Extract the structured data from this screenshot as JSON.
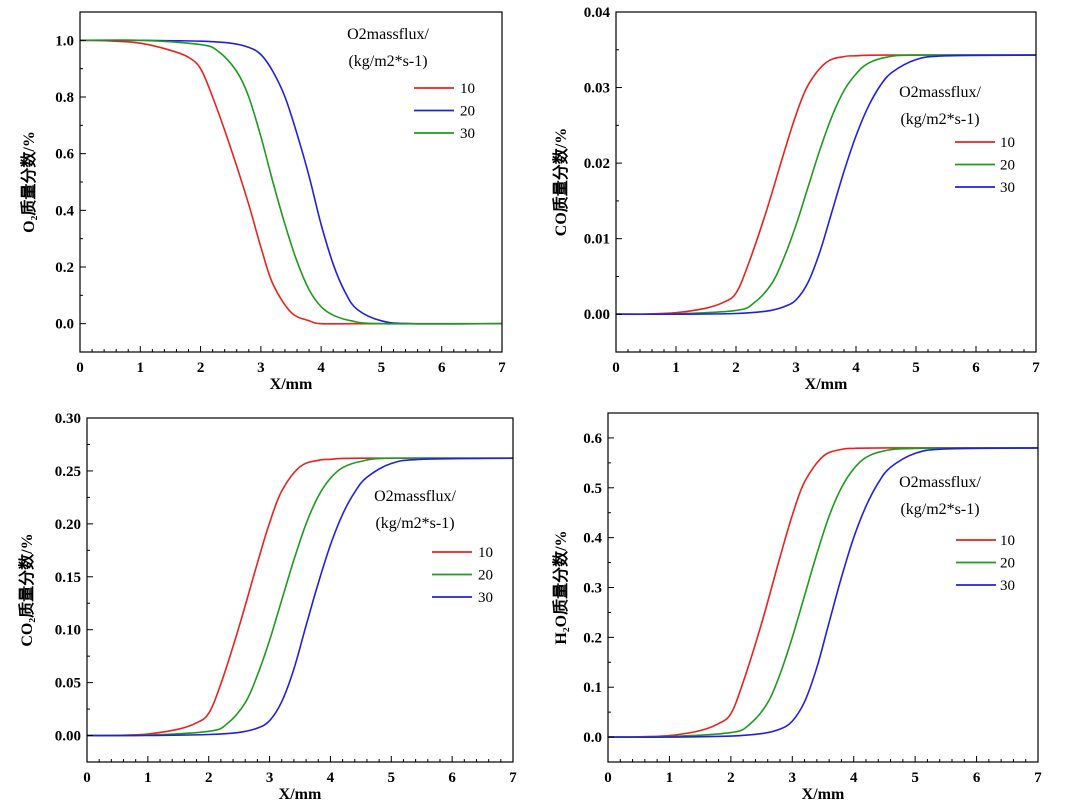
{
  "chart_data": [
    {
      "type": "line",
      "xlabel": "X/mm",
      "ylabel": "O₂质量分数/%",
      "xlim": [
        0,
        7
      ],
      "ylim": [
        -0.1,
        1.1
      ],
      "xticks": [
        0,
        1,
        2,
        3,
        4,
        5,
        6,
        7
      ],
      "yticks": [
        0.0,
        0.2,
        0.4,
        0.6,
        0.8,
        1.0
      ],
      "ytick_labels": [
        "0.0",
        "0.2",
        "0.4",
        "0.6",
        "0.8",
        "1.0"
      ],
      "grid": false,
      "legend": {
        "title_line1": "O2massflux/",
        "title_line2": "(kg/m2*s-1)",
        "placement": "top-right",
        "entries": [
          {
            "label": "10",
            "color": "#e8231f"
          },
          {
            "label": "20",
            "color": "#1f20e6"
          },
          {
            "label": "30",
            "color": "#1e9b1e"
          }
        ]
      },
      "series": [
        {
          "name": "10",
          "color": "#e8231f",
          "x": [
            0,
            0.5,
            1.0,
            1.5,
            1.8,
            2.0,
            2.2,
            2.5,
            2.8,
            3.0,
            3.2,
            3.5,
            3.8,
            4.0,
            4.5,
            5.0,
            7.0
          ],
          "y": [
            1.0,
            0.998,
            0.99,
            0.965,
            0.94,
            0.9,
            0.8,
            0.62,
            0.42,
            0.27,
            0.14,
            0.04,
            0.01,
            0.0,
            0.0,
            0.0,
            0.0
          ]
        },
        {
          "name": "20",
          "color": "#1f20e6",
          "x": [
            0,
            1.0,
            2.0,
            2.5,
            2.8,
            3.0,
            3.2,
            3.4,
            3.6,
            3.8,
            4.0,
            4.2,
            4.4,
            4.6,
            5.0,
            5.5,
            7.0
          ],
          "y": [
            1.0,
            1.0,
            0.997,
            0.99,
            0.975,
            0.95,
            0.89,
            0.8,
            0.67,
            0.52,
            0.35,
            0.21,
            0.11,
            0.05,
            0.01,
            0.0,
            0.0
          ]
        },
        {
          "name": "30",
          "color": "#1e9b1e",
          "x": [
            0,
            1.0,
            2.0,
            2.3,
            2.6,
            2.8,
            3.0,
            3.2,
            3.4,
            3.6,
            3.8,
            4.0,
            4.2,
            4.5,
            5.0,
            7.0
          ],
          "y": [
            1.0,
            1.0,
            0.985,
            0.96,
            0.89,
            0.8,
            0.66,
            0.5,
            0.35,
            0.22,
            0.12,
            0.06,
            0.03,
            0.01,
            0.0,
            0.0
          ]
        }
      ]
    },
    {
      "type": "line",
      "xlabel": "X/mm",
      "ylabel": "CO质量分数/%",
      "xlim": [
        0,
        7
      ],
      "ylim": [
        -0.005,
        0.04
      ],
      "xticks": [
        0,
        1,
        2,
        3,
        4,
        5,
        6,
        7
      ],
      "yticks": [
        0.0,
        0.01,
        0.02,
        0.03,
        0.04
      ],
      "ytick_labels": [
        "0.00",
        "0.01",
        "0.02",
        "0.03",
        "0.04"
      ],
      "grid": false,
      "legend": {
        "title_line1": "O2massflux/",
        "title_line2": "(kg/m2*s-1)",
        "placement": "right",
        "entries": [
          {
            "label": "10",
            "color": "#e8231f"
          },
          {
            "label": "20",
            "color": "#1e9b1e"
          },
          {
            "label": "30",
            "color": "#1f20e6"
          }
        ]
      },
      "series": [
        {
          "name": "10",
          "color": "#e8231f",
          "x": [
            0,
            0.5,
            1.0,
            1.5,
            1.8,
            2.0,
            2.2,
            2.5,
            2.8,
            3.0,
            3.2,
            3.5,
            3.8,
            4.0,
            4.5,
            7.0
          ],
          "y": [
            0.0,
            3e-05,
            0.0002,
            0.0008,
            0.0016,
            0.0028,
            0.0065,
            0.0135,
            0.0214,
            0.0264,
            0.0303,
            0.0333,
            0.0341,
            0.0342,
            0.0343,
            0.0343
          ]
        },
        {
          "name": "20",
          "color": "#1e9b1e",
          "x": [
            0,
            1.0,
            2.0,
            2.3,
            2.6,
            2.8,
            3.0,
            3.2,
            3.4,
            3.6,
            3.8,
            4.0,
            4.2,
            4.5,
            5.0,
            7.0
          ],
          "y": [
            0.0,
            5e-05,
            0.0005,
            0.0015,
            0.0041,
            0.0075,
            0.0118,
            0.0168,
            0.0218,
            0.0262,
            0.0296,
            0.0318,
            0.0332,
            0.034,
            0.0343,
            0.0343
          ]
        },
        {
          "name": "30",
          "color": "#1f20e6",
          "x": [
            0,
            1.0,
            2.0,
            2.5,
            2.8,
            3.0,
            3.2,
            3.4,
            3.6,
            3.8,
            4.0,
            4.2,
            4.4,
            4.6,
            5.0,
            5.5,
            7.0
          ],
          "y": [
            0.0,
            0.0,
            0.0001,
            0.0004,
            0.001,
            0.0019,
            0.0042,
            0.0083,
            0.0136,
            0.0189,
            0.0236,
            0.0274,
            0.0302,
            0.032,
            0.0337,
            0.0342,
            0.0343
          ]
        }
      ]
    },
    {
      "type": "line",
      "xlabel": "X/mm",
      "ylabel": "CO₂质量分数/%",
      "xlim": [
        0,
        7
      ],
      "ylim": [
        -0.025,
        0.3
      ],
      "xticks": [
        0,
        1,
        2,
        3,
        4,
        5,
        6,
        7
      ],
      "yticks": [
        0.0,
        0.05,
        0.1,
        0.15,
        0.2,
        0.25,
        0.3
      ],
      "ytick_labels": [
        "0.00",
        "0.05",
        "0.10",
        "0.15",
        "0.20",
        "0.25",
        "0.30"
      ],
      "grid": false,
      "legend": {
        "title_line1": "O2massflux/",
        "title_line2": "(kg/m2*s-1)",
        "placement": "right",
        "entries": [
          {
            "label": "10",
            "color": "#e8231f"
          },
          {
            "label": "20",
            "color": "#1e9b1e"
          },
          {
            "label": "30",
            "color": "#1f20e6"
          }
        ]
      },
      "series": [
        {
          "name": "10",
          "color": "#e8231f",
          "x": [
            0,
            0.5,
            1.0,
            1.5,
            1.8,
            2.0,
            2.2,
            2.5,
            2.8,
            3.0,
            3.2,
            3.5,
            3.8,
            4.0,
            4.5,
            7.0
          ],
          "y": [
            0.0,
            0.0002,
            0.0015,
            0.006,
            0.012,
            0.021,
            0.049,
            0.103,
            0.163,
            0.201,
            0.231,
            0.254,
            0.26,
            0.261,
            0.262,
            0.262
          ]
        },
        {
          "name": "20",
          "color": "#1e9b1e",
          "x": [
            0,
            1.0,
            2.0,
            2.3,
            2.6,
            2.8,
            3.0,
            3.2,
            3.4,
            3.6,
            3.8,
            4.0,
            4.2,
            4.5,
            5.0,
            7.0
          ],
          "y": [
            0.0,
            0.0004,
            0.004,
            0.011,
            0.031,
            0.057,
            0.09,
            0.128,
            0.166,
            0.2,
            0.226,
            0.243,
            0.253,
            0.259,
            0.262,
            0.262
          ]
        },
        {
          "name": "30",
          "color": "#1f20e6",
          "x": [
            0,
            1.0,
            2.0,
            2.5,
            2.8,
            3.0,
            3.2,
            3.4,
            3.6,
            3.8,
            4.0,
            4.2,
            4.4,
            4.6,
            5.0,
            5.5,
            7.0
          ],
          "y": [
            0.0,
            0.0,
            0.001,
            0.003,
            0.007,
            0.014,
            0.032,
            0.063,
            0.104,
            0.144,
            0.18,
            0.209,
            0.23,
            0.244,
            0.257,
            0.261,
            0.262
          ]
        }
      ]
    },
    {
      "type": "line",
      "xlabel": "X/mm",
      "ylabel": "H₂O质量分数/%",
      "xlim": [
        0,
        7
      ],
      "ylim": [
        -0.05,
        0.65
      ],
      "xticks": [
        0,
        1,
        2,
        3,
        4,
        5,
        6,
        7
      ],
      "yticks": [
        0.0,
        0.1,
        0.2,
        0.3,
        0.4,
        0.5,
        0.6
      ],
      "ytick_labels": [
        "0.0",
        "0.1",
        "0.2",
        "0.3",
        "0.4",
        "0.5",
        "0.6"
      ],
      "grid": false,
      "legend": {
        "title_line1": "O2massflux/",
        "title_line2": "(kg/m2*s-1)",
        "placement": "right",
        "entries": [
          {
            "label": "10",
            "color": "#e8231f"
          },
          {
            "label": "20",
            "color": "#1e9b1e"
          },
          {
            "label": "30",
            "color": "#1f20e6"
          }
        ]
      },
      "series": [
        {
          "name": "10",
          "color": "#e8231f",
          "x": [
            0,
            0.5,
            1.0,
            1.5,
            1.8,
            2.0,
            2.2,
            2.5,
            2.8,
            3.0,
            3.2,
            3.5,
            3.8,
            4.0,
            4.5,
            7.0
          ],
          "y": [
            0.0,
            0.0005,
            0.003,
            0.013,
            0.027,
            0.047,
            0.11,
            0.228,
            0.361,
            0.445,
            0.512,
            0.563,
            0.577,
            0.579,
            0.58,
            0.58
          ]
        },
        {
          "name": "20",
          "color": "#1e9b1e",
          "x": [
            0,
            1.0,
            2.0,
            2.3,
            2.6,
            2.8,
            3.0,
            3.2,
            3.4,
            3.6,
            3.8,
            4.0,
            4.2,
            4.5,
            5.0,
            7.0
          ],
          "y": [
            0.0,
            0.001,
            0.009,
            0.025,
            0.069,
            0.126,
            0.2,
            0.284,
            0.368,
            0.443,
            0.5,
            0.538,
            0.561,
            0.574,
            0.579,
            0.58
          ]
        },
        {
          "name": "30",
          "color": "#1f20e6",
          "x": [
            0,
            1.0,
            2.0,
            2.5,
            2.8,
            3.0,
            3.2,
            3.4,
            3.6,
            3.8,
            4.0,
            4.2,
            4.4,
            4.6,
            5.0,
            5.5,
            7.0
          ],
          "y": [
            0.0,
            0.0,
            0.002,
            0.007,
            0.016,
            0.032,
            0.071,
            0.14,
            0.23,
            0.32,
            0.4,
            0.463,
            0.51,
            0.541,
            0.569,
            0.578,
            0.58
          ]
        }
      ]
    }
  ]
}
